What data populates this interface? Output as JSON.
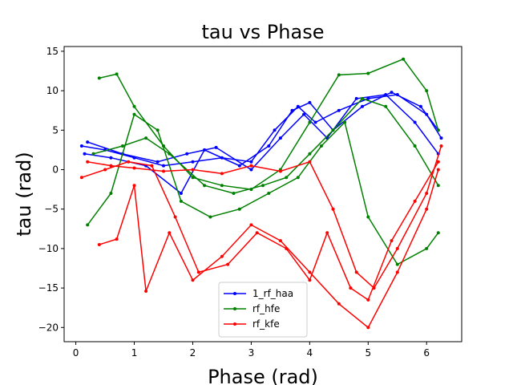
{
  "chart_data": {
    "type": "line",
    "title": "tau vs Phase",
    "xlabel": "Phase (rad)",
    "ylabel": "tau (rad)",
    "xlim": [
      -0.2,
      6.6
    ],
    "ylim": [
      -21.8,
      15.6
    ],
    "xticks": [
      0,
      1,
      2,
      3,
      4,
      5,
      6
    ],
    "yticks": [
      -20,
      -15,
      -10,
      -5,
      0,
      5,
      10,
      15
    ],
    "legend_position": "lower-center",
    "series": [
      {
        "name": "1_rf_haa",
        "color": "#0000ff",
        "curves": [
          {
            "x": [
              0.1,
              0.5,
              1.0,
              1.5,
              2.0,
              2.5,
              3.0,
              3.4,
              3.8,
              4.1,
              4.5,
              5.0,
              5.5,
              6.0,
              6.25
            ],
            "y": [
              3.0,
              2.5,
              1.5,
              0.5,
              1.0,
              1.5,
              1.0,
              5.0,
              8.0,
              6.0,
              7.5,
              9.0,
              9.5,
              7.0,
              4.0
            ]
          },
          {
            "x": [
              0.15,
              0.6,
              1.2,
              1.8,
              2.2,
              2.8,
              3.3,
              3.7,
              4.0,
              4.4,
              4.9,
              5.4,
              5.9,
              6.2
            ],
            "y": [
              2.0,
              1.5,
              0.5,
              -3.0,
              2.5,
              0.5,
              3.0,
              7.5,
              8.5,
              5.0,
              8.0,
              9.8,
              8.0,
              5.0
            ]
          },
          {
            "x": [
              0.2,
              0.8,
              1.4,
              1.9,
              2.4,
              3.0,
              3.5,
              3.9,
              4.3,
              4.8,
              5.3,
              5.8,
              6.2
            ],
            "y": [
              3.5,
              2.0,
              1.0,
              2.0,
              2.8,
              0.0,
              4.0,
              7.0,
              4.0,
              9.0,
              9.5,
              6.0,
              2.0
            ]
          }
        ]
      },
      {
        "name": "rf_hfe",
        "color": "#008000",
        "curves": [
          {
            "x": [
              0.4,
              0.7,
              1.0,
              1.5,
              2.0,
              2.5,
              3.0,
              3.5,
              4.0,
              4.5,
              5.0,
              5.6,
              6.0,
              6.2
            ],
            "y": [
              11.6,
              12.1,
              8.0,
              3.0,
              -1.0,
              -2.0,
              -2.5,
              0.0,
              6.0,
              12.0,
              12.2,
              14.0,
              10.0,
              5.0
            ]
          },
          {
            "x": [
              0.2,
              0.6,
              1.0,
              1.4,
              1.8,
              2.3,
              2.8,
              3.3,
              3.8,
              4.2,
              4.6,
              5.0,
              5.5,
              6.0,
              6.2
            ],
            "y": [
              -7.0,
              -3.0,
              7.0,
              5.0,
              -4.0,
              -6.0,
              -5.0,
              -3.0,
              -1.0,
              3.0,
              6.0,
              -6.0,
              -12.0,
              -10.0,
              -8.0
            ]
          },
          {
            "x": [
              0.3,
              0.8,
              1.2,
              1.6,
              2.2,
              2.7,
              3.2,
              3.6,
              4.0,
              4.4,
              4.9,
              5.3,
              5.8,
              6.2
            ],
            "y": [
              2.0,
              3.0,
              4.0,
              2.0,
              -2.0,
              -3.0,
              -2.0,
              -1.0,
              2.0,
              5.0,
              9.0,
              8.0,
              3.0,
              -2.0
            ]
          }
        ]
      },
      {
        "name": "rf_kfe",
        "color": "#ff0000",
        "curves": [
          {
            "x": [
              0.4,
              0.7,
              1.0,
              1.2,
              1.6,
              2.0,
              2.5,
              3.0,
              3.5,
              4.0,
              4.5,
              5.0,
              5.5,
              6.0,
              6.2
            ],
            "y": [
              -9.5,
              -8.8,
              -2.0,
              -15.4,
              -8.0,
              -14.0,
              -11.0,
              -7.0,
              -9.0,
              -13.0,
              -17.0,
              -20.0,
              -13.0,
              -5.0,
              0.0
            ]
          },
          {
            "x": [
              0.2,
              0.6,
              1.0,
              1.5,
              2.0,
              2.5,
              3.0,
              3.5,
              4.0,
              4.4,
              4.8,
              5.1,
              5.5,
              6.0,
              6.25
            ],
            "y": [
              1.0,
              0.5,
              0.2,
              -0.2,
              0.0,
              -0.5,
              0.5,
              -0.2,
              1.0,
              -5.0,
              -13.0,
              -15.0,
              -10.0,
              -3.0,
              3.0
            ]
          },
          {
            "x": [
              0.1,
              0.5,
              0.9,
              1.3,
              1.7,
              2.1,
              2.6,
              3.1,
              3.6,
              4.0,
              4.3,
              4.7,
              5.0,
              5.4,
              5.8,
              6.2
            ],
            "y": [
              -1.0,
              0.0,
              1.0,
              0.5,
              -6.0,
              -13.0,
              -12.0,
              -8.0,
              -10.0,
              -14.0,
              -8.0,
              -15.0,
              -16.5,
              -9.0,
              -4.0,
              1.0
            ]
          }
        ]
      }
    ]
  }
}
